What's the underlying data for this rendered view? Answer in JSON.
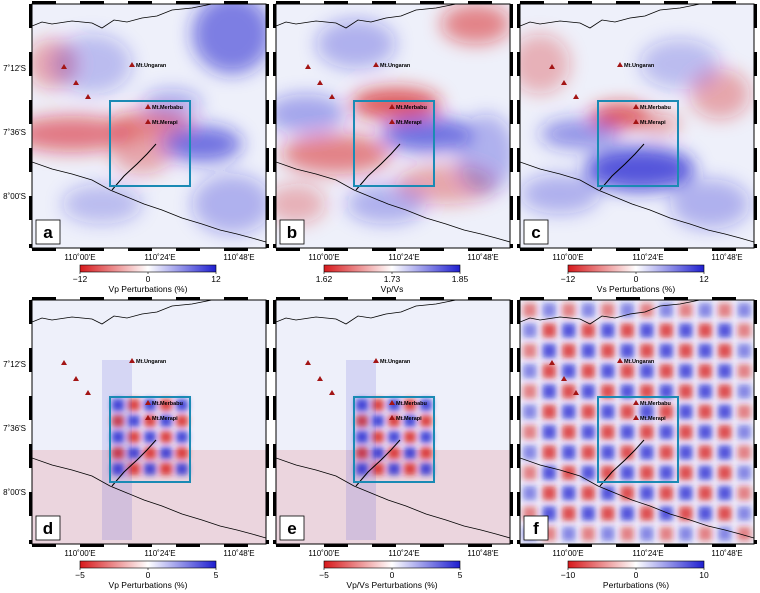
{
  "panels": [
    {
      "id": "a",
      "label": "a",
      "colorbar": {
        "min": "−12",
        "mid": "0",
        "max": "12",
        "title": "Vp Perturbations (%)"
      },
      "pattern": "smooth1"
    },
    {
      "id": "b",
      "label": "b",
      "colorbar": {
        "min": "1.62",
        "mid": "1.73",
        "max": "1.85",
        "title": "Vp/Vs"
      },
      "pattern": "smooth2"
    },
    {
      "id": "c",
      "label": "c",
      "colorbar": {
        "min": "−12",
        "mid": "0",
        "max": "12",
        "title": "Vs Perturbations (%)"
      },
      "pattern": "smooth3"
    },
    {
      "id": "d",
      "label": "d",
      "colorbar": {
        "min": "−5",
        "mid": "0",
        "max": "5",
        "title": "Vp Perturbations (%)"
      },
      "pattern": "checkerSmall"
    },
    {
      "id": "e",
      "label": "e",
      "colorbar": {
        "min": "−5",
        "mid": "0",
        "max": "5",
        "title": "Vp/Vs Perturbations (%)"
      },
      "pattern": "checkerSmall"
    },
    {
      "id": "f",
      "label": "f",
      "colorbar": {
        "min": "−10",
        "mid": "0",
        "max": "10",
        "title": "Perturbations (%)"
      },
      "pattern": "checkerBig"
    }
  ],
  "lat_ticks": [
    "7˚12'S",
    "7˚36'S",
    "8˚00'S"
  ],
  "lon_ticks": [
    "110˚00'E",
    "110˚24'E",
    "110˚48'E"
  ],
  "volcanoes": {
    "ungaran": "Mt.Ungaran",
    "merbabu": "Mt.Merbabu",
    "merapi": "Mt.Merapi"
  },
  "colors": {
    "negative": "#d7191c",
    "positive": "#1f1fd0",
    "neutral": "#ffffff",
    "inset_box": "#1a8ab4",
    "volcano": "#a31515"
  }
}
